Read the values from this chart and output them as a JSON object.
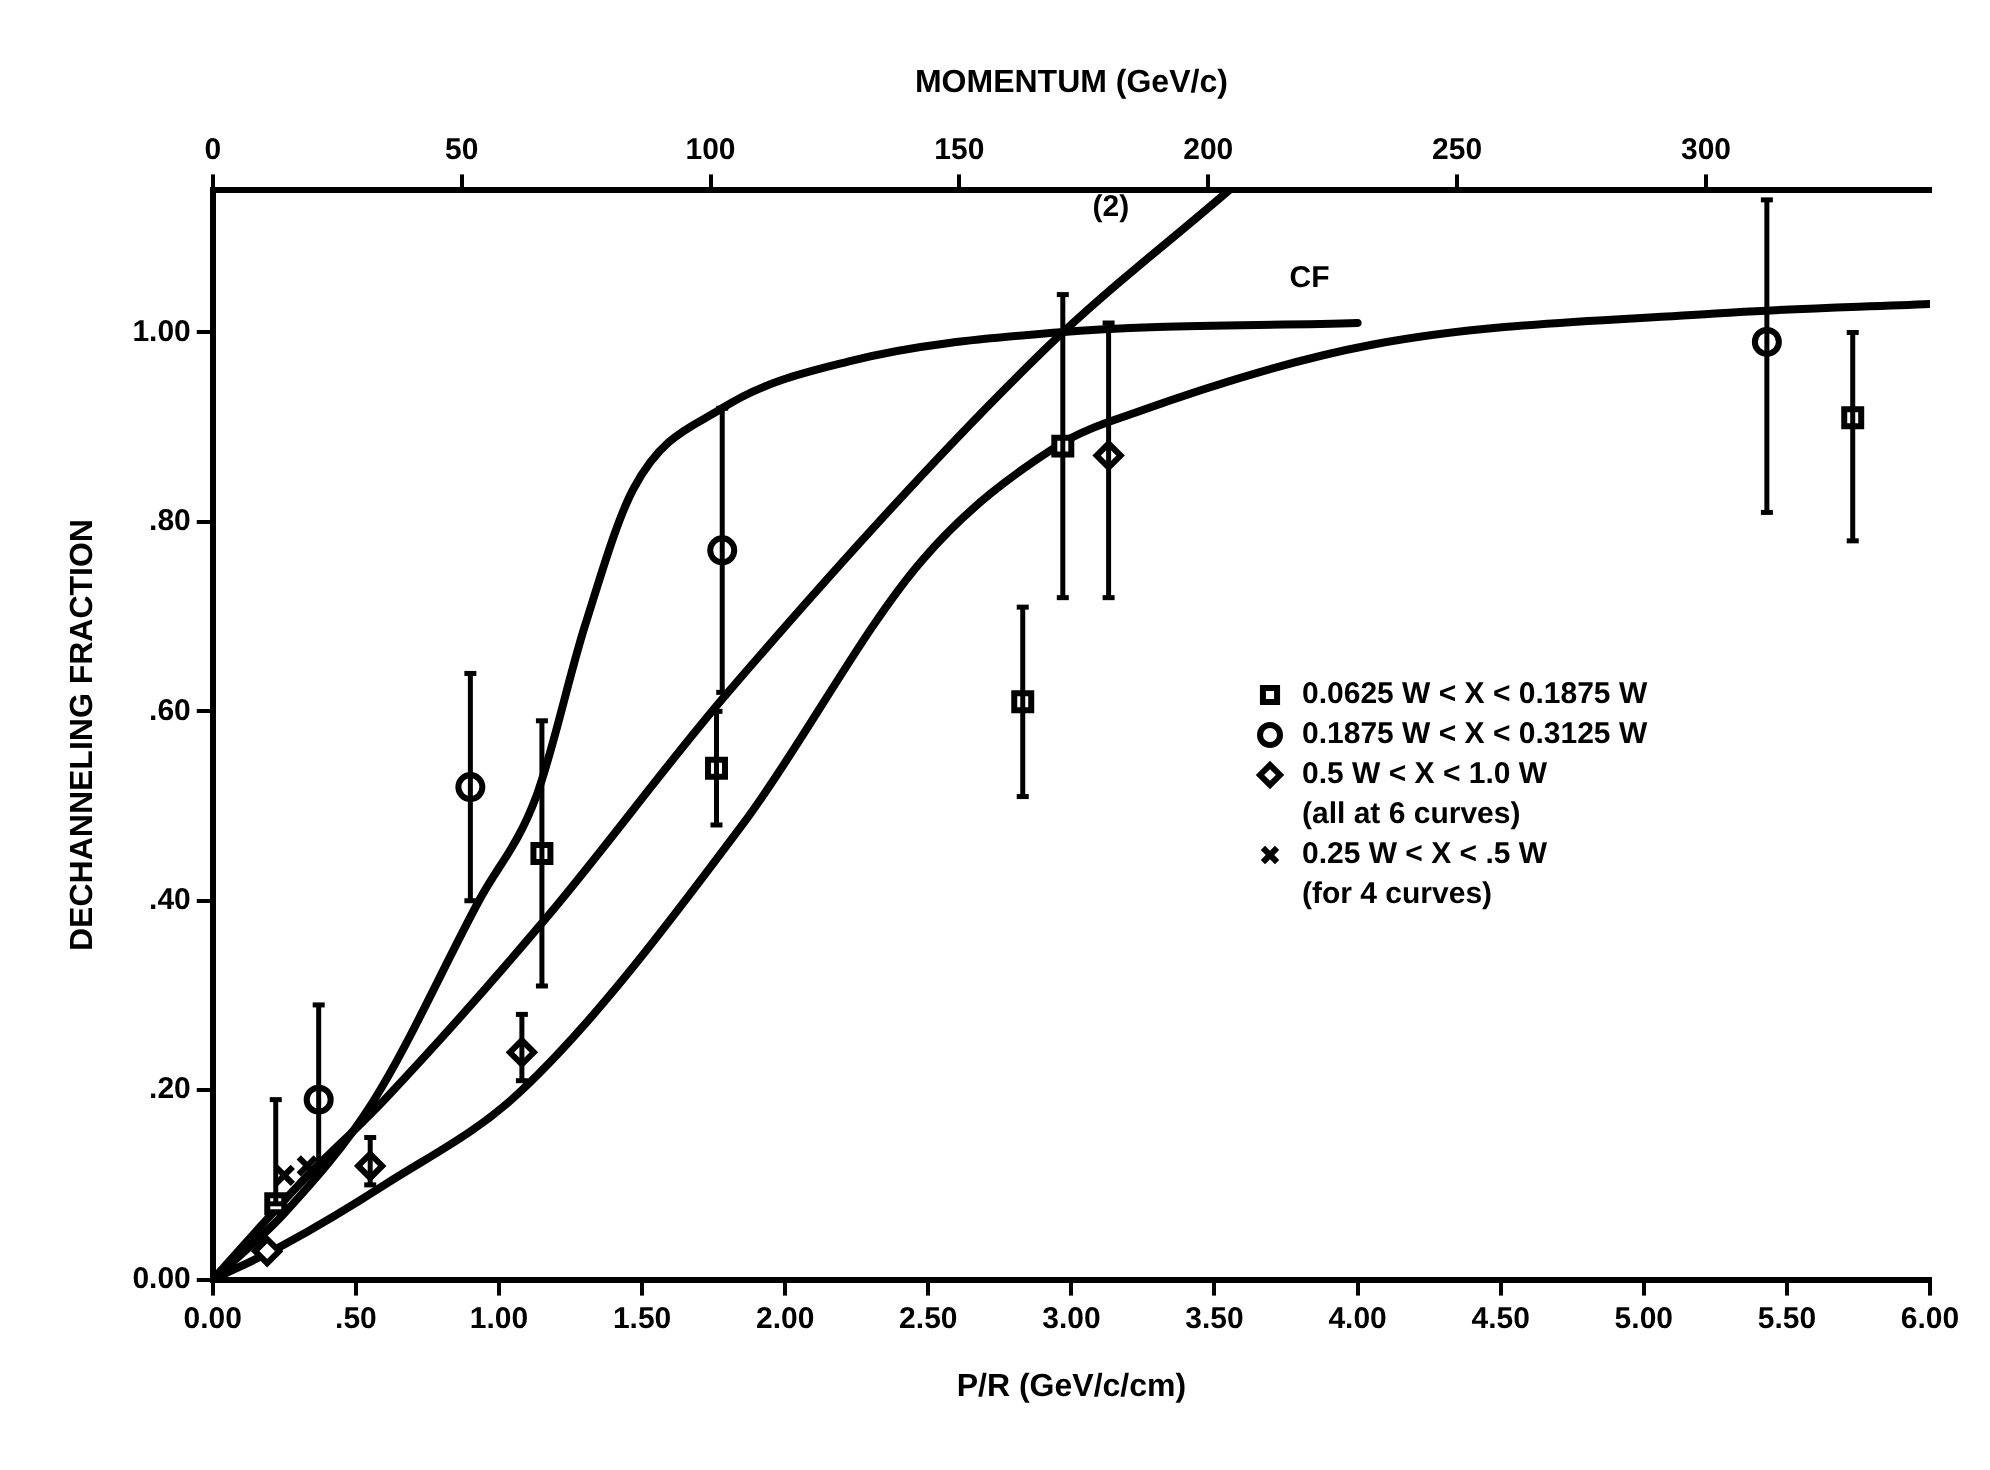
{
  "chart_data": {
    "type": "scatter",
    "xlabel": "P/R (GeV/c/cm)",
    "ylabel": "DECHANNELING FRACTION",
    "x2label": "MOMENTUM (GeV/c)",
    "xlim": [
      0,
      6
    ],
    "xticks": [
      {
        "value": 0,
        "label": "0.00"
      },
      {
        "value": 0.5,
        "label": ".50"
      },
      {
        "value": 1,
        "label": "1.00"
      },
      {
        "value": 1.5,
        "label": "1.50"
      },
      {
        "value": 2,
        "label": "2.00"
      },
      {
        "value": 2.5,
        "label": "2.50"
      },
      {
        "value": 3,
        "label": "3.00"
      },
      {
        "value": 3.5,
        "label": "3.50"
      },
      {
        "value": 4,
        "label": "4.00"
      },
      {
        "value": 4.5,
        "label": "4.50"
      },
      {
        "value": 5,
        "label": "5.00"
      },
      {
        "value": 5.5,
        "label": "5.50"
      },
      {
        "value": 6,
        "label": "6.00"
      }
    ],
    "x2lim": [
      0,
      345
    ],
    "x2ticks": [
      0,
      50,
      100,
      150,
      200,
      250,
      300
    ],
    "ylim": [
      0,
      1.15
    ],
    "yticks": [
      {
        "value": 0,
        "label": "0.00"
      },
      {
        "value": 0.2,
        "label": ".20"
      },
      {
        "value": 0.4,
        "label": ".40"
      },
      {
        "value": 0.6,
        "label": ".60"
      },
      {
        "value": 0.8,
        "label": ".80"
      },
      {
        "value": 1,
        "label": "1.00"
      }
    ],
    "grid": false,
    "legend": "right",
    "annotations": [
      {
        "text": "(2)",
        "x": 3.3,
        "y": 1.085
      },
      {
        "text": "CF",
        "x": 4.0,
        "y": 1.01
      }
    ],
    "series": [
      {
        "name": "0.0625 W < X < 0.1875 W",
        "marker": "square",
        "color": "#000000",
        "x": [
          0.22,
          1.15,
          1.76,
          2.83,
          2.97,
          5.73
        ],
        "values": [
          0.08,
          0.45,
          0.54,
          0.61,
          0.88,
          0.91
        ],
        "errors": [
          [
            0.08,
            0.19
          ],
          [
            0.31,
            0.59
          ],
          [
            0.48,
            0.6
          ],
          [
            0.51,
            0.71
          ],
          [
            0.72,
            1.04
          ],
          [
            0.78,
            1.0
          ]
        ]
      },
      {
        "name": "0.1875 W < X < 0.3125 W",
        "marker": "circle",
        "color": "#000000",
        "x": [
          0.37,
          0.9,
          1.78,
          5.43
        ],
        "values": [
          0.19,
          0.52,
          0.77,
          0.99
        ],
        "errors": [
          [
            0.115,
            0.29
          ],
          [
            0.4,
            0.64
          ],
          [
            0.62,
            0.92
          ],
          [
            0.81,
            1.14
          ]
        ]
      },
      {
        "name": "0.5 W < X < 1.0 W\n(all at 6 curves)",
        "marker": "diamond",
        "color": "#000000",
        "x": [
          0.19,
          0.55,
          1.08,
          3.13
        ],
        "values": [
          0.03,
          0.12,
          0.24,
          0.87
        ],
        "errors": [
          null,
          [
            0.1,
            0.15
          ],
          [
            0.21,
            0.28
          ],
          [
            0.72,
            1.01
          ]
        ]
      },
      {
        "name": "0.25 W < X < .5 W\n(for 4 curves)",
        "marker": "cross",
        "color": "#000000",
        "x": [
          0.25,
          0.33
        ],
        "values": [
          0.11,
          0.12
        ]
      },
      {
        "type": "line",
        "marker": "none",
        "color": "#000000",
        "x": [
          0,
          0.25,
          0.56,
          0.93,
          1.13,
          1.3,
          1.47,
          1.78,
          2.23,
          2.95,
          4.0
        ],
        "values": [
          0,
          0.07,
          0.188,
          0.4,
          0.51,
          0.69,
          0.835,
          0.92,
          0.97,
          1.0,
          1.01
        ]
      },
      {
        "type": "line",
        "marker": "none",
        "color": "#000000",
        "x": [
          0,
          0.3,
          0.6,
          1.16,
          1.8,
          2.9,
          3.55
        ],
        "values": [
          0,
          0.1,
          0.19,
          0.38,
          0.62,
          0.98,
          1.15
        ]
      },
      {
        "type": "line",
        "marker": "none",
        "color": "#000000",
        "x": [
          0,
          0.25,
          0.6,
          1.08,
          1.85,
          2.48,
          2.95,
          3.22,
          4.05,
          5.25,
          6.0
        ],
        "values": [
          0,
          0.037,
          0.1,
          0.2,
          0.48,
          0.76,
          0.88,
          0.915,
          0.987,
          1.02,
          1.03
        ]
      }
    ]
  }
}
